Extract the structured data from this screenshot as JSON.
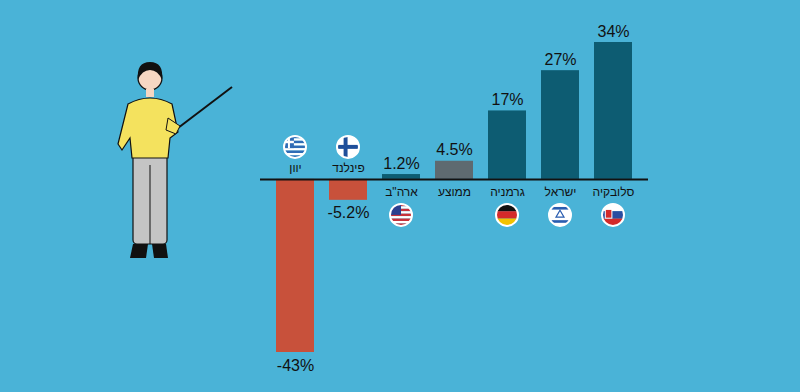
{
  "chart_data": {
    "type": "bar",
    "categories": [
      "יוון",
      "פינלנד",
      "ארה\"ב",
      "ממוצע",
      "גרמניה",
      "ישראל",
      "סלובקיה"
    ],
    "values": [
      -43,
      -5.2,
      1.2,
      4.5,
      17,
      27,
      34
    ],
    "value_labels": [
      "-43%",
      "-5.2%",
      "1.2%",
      "4.5%",
      "17%",
      "27%",
      "34%"
    ],
    "colors": [
      "#c8513b",
      "#c8513b",
      "#0d5c72",
      "#5e6a70",
      "#0d5c72",
      "#0d5c72",
      "#0d5c72"
    ],
    "ylim": [
      -43,
      34
    ],
    "data_labels": true,
    "tick_labels": "x"
  }
}
